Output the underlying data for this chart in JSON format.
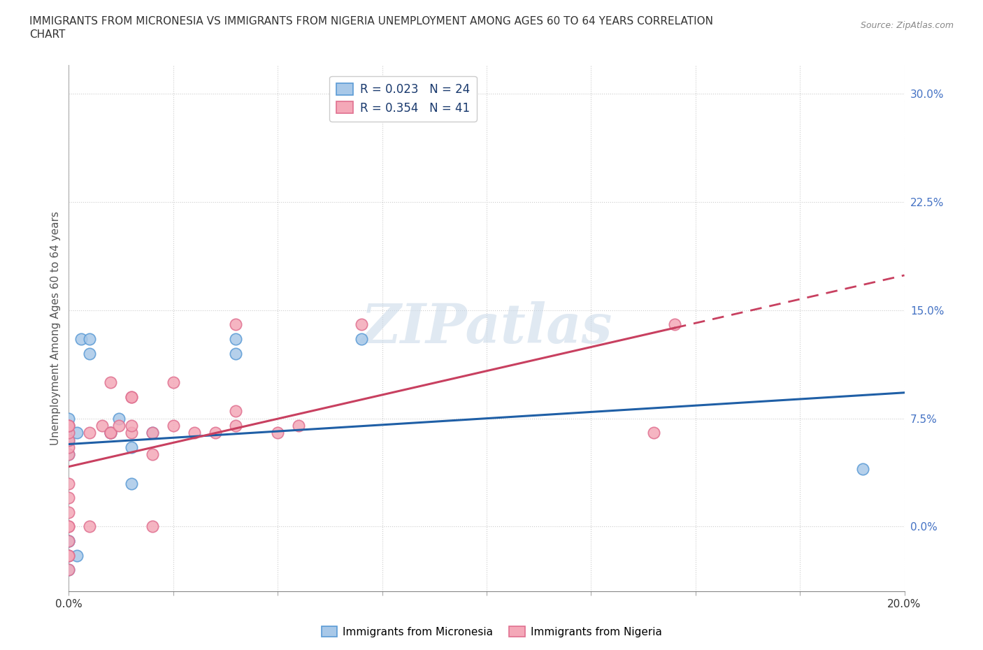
{
  "title_line1": "IMMIGRANTS FROM MICRONESIA VS IMMIGRANTS FROM NIGERIA UNEMPLOYMENT AMONG AGES 60 TO 64 YEARS CORRELATION",
  "title_line2": "CHART",
  "source": "Source: ZipAtlas.com",
  "ylabel": "Unemployment Among Ages 60 to 64 years",
  "xlim": [
    0.0,
    0.2
  ],
  "ylim": [
    -0.045,
    0.32
  ],
  "yticks": [
    0.0,
    0.075,
    0.15,
    0.225,
    0.3
  ],
  "ytick_labels": [
    "0.0%",
    "7.5%",
    "15.0%",
    "22.5%",
    "30.0%"
  ],
  "xticks": [
    0.0,
    0.025,
    0.05,
    0.075,
    0.1,
    0.125,
    0.15,
    0.175,
    0.2
  ],
  "xtick_labels": [
    "0.0%",
    "",
    "",
    "",
    "",
    "",
    "",
    "",
    "20.0%"
  ],
  "micronesia_color": "#a8c8e8",
  "nigeria_color": "#f4a8b8",
  "micronesia_edge": "#5b9bd5",
  "nigeria_edge": "#e07090",
  "trend_micronesia_color": "#1f5fa6",
  "trend_nigeria_color": "#c84060",
  "legend_R_micronesia": "R = 0.023",
  "legend_N_micronesia": "N = 24",
  "legend_R_nigeria": "R = 0.354",
  "legend_N_nigeria": "N = 41",
  "watermark": "ZIPatlas",
  "micronesia_x": [
    0.0,
    0.0,
    0.0,
    0.0,
    0.0,
    0.0,
    0.0,
    0.0,
    0.002,
    0.003,
    0.005,
    0.005,
    0.01,
    0.01,
    0.012,
    0.015,
    0.015,
    0.02,
    0.04,
    0.04,
    0.07,
    0.19,
    0.0,
    0.002
  ],
  "micronesia_y": [
    0.05,
    0.06,
    0.065,
    0.07,
    0.075,
    -0.01,
    -0.02,
    -0.03,
    0.065,
    0.13,
    0.12,
    0.13,
    0.065,
    0.065,
    0.075,
    0.055,
    0.03,
    0.065,
    0.12,
    0.13,
    0.13,
    0.04,
    -0.01,
    -0.02
  ],
  "nigeria_x": [
    0.0,
    0.0,
    0.0,
    0.0,
    0.0,
    0.0,
    0.0,
    0.0,
    0.0,
    0.0,
    0.0,
    0.0,
    0.0,
    0.005,
    0.005,
    0.008,
    0.01,
    0.01,
    0.01,
    0.012,
    0.015,
    0.015,
    0.015,
    0.015,
    0.02,
    0.02,
    0.02,
    0.025,
    0.025,
    0.03,
    0.035,
    0.04,
    0.04,
    0.04,
    0.05,
    0.055,
    0.07,
    0.14,
    0.145,
    0.0,
    0.0
  ],
  "nigeria_y": [
    0.0,
    0.0,
    0.01,
    0.02,
    0.03,
    0.05,
    0.055,
    0.06,
    0.065,
    0.07,
    0.07,
    -0.01,
    -0.02,
    0.0,
    0.065,
    0.07,
    0.065,
    0.065,
    0.1,
    0.07,
    0.065,
    0.07,
    0.09,
    0.09,
    0.0,
    0.05,
    0.065,
    0.07,
    0.1,
    0.065,
    0.065,
    0.07,
    0.08,
    0.14,
    0.065,
    0.07,
    0.14,
    0.065,
    0.14,
    -0.02,
    -0.03
  ]
}
